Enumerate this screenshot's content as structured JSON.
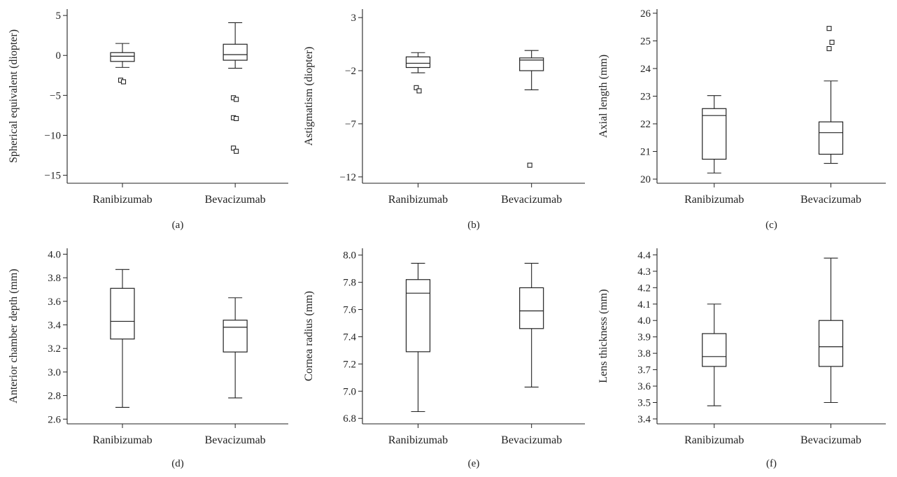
{
  "figure": {
    "panels": [
      "(a)",
      "(b)",
      "(c)",
      "(d)",
      "(e)",
      "(f)"
    ]
  },
  "chart_data": [
    {
      "type": "box",
      "panel_label": "(a)",
      "ylabel": "Spherical equivalent (diopter)",
      "categories": [
        "Ranibizumab",
        "Bevacizumab"
      ],
      "ylim": [
        -16,
        5.8
      ],
      "yticks": [
        5,
        0,
        -5,
        -10,
        -15
      ],
      "ytick_labels": [
        "5",
        "0",
        "−5",
        "−10",
        "−15"
      ],
      "grid": false,
      "boxes": [
        {
          "whisker_low": -1.5,
          "q1": -0.75,
          "median": -0.1,
          "q3": 0.35,
          "whisker_high": 1.5,
          "outliers": [
            -3.1,
            -3.3
          ]
        },
        {
          "whisker_low": -1.6,
          "q1": -0.6,
          "median": 0.1,
          "q3": 1.4,
          "whisker_high": 4.1,
          "outliers": [
            -5.3,
            -5.5,
            -7.8,
            -7.9,
            -11.6,
            -12.0
          ]
        }
      ]
    },
    {
      "type": "box",
      "panel_label": "(b)",
      "ylabel": "Astigmatism (diopter)",
      "categories": [
        "Ranibizumab",
        "Bevacizumab"
      ],
      "ylim": [
        -12.6,
        3.8
      ],
      "yticks": [
        3,
        -2,
        -7,
        -12
      ],
      "ytick_labels": [
        "3",
        "−2",
        "−7",
        "−12"
      ],
      "grid": false,
      "boxes": [
        {
          "whisker_low": -2.2,
          "q1": -1.7,
          "median": -1.3,
          "q3": -0.7,
          "whisker_high": -0.3,
          "outliers": [
            -3.6,
            -3.9
          ]
        },
        {
          "whisker_low": -3.8,
          "q1": -2.0,
          "median": -1.0,
          "q3": -0.8,
          "whisker_high": -0.1,
          "outliers": [
            -10.9
          ]
        }
      ]
    },
    {
      "type": "box",
      "panel_label": "(c)",
      "ylabel": "Axial length (mm)",
      "categories": [
        "Ranibizumab",
        "Bevacizumab"
      ],
      "ylim": [
        19.85,
        26.15
      ],
      "yticks": [
        20,
        21,
        22,
        23,
        24,
        25,
        26
      ],
      "ytick_labels": [
        "20",
        "21",
        "22",
        "23",
        "24",
        "25",
        "26"
      ],
      "grid": false,
      "boxes": [
        {
          "whisker_low": 20.22,
          "q1": 20.72,
          "median": 22.3,
          "q3": 22.55,
          "whisker_high": 23.02,
          "outliers": []
        },
        {
          "whisker_low": 20.57,
          "q1": 20.9,
          "median": 21.68,
          "q3": 22.07,
          "whisker_high": 23.55,
          "outliers": [
            24.72,
            24.95,
            25.45
          ]
        }
      ]
    },
    {
      "type": "box",
      "panel_label": "(d)",
      "ylabel": "Anterior chamber depth (mm)",
      "categories": [
        "Ranibizumab",
        "Bevacizumab"
      ],
      "ylim": [
        2.56,
        4.05
      ],
      "yticks": [
        4.0,
        3.8,
        3.6,
        3.4,
        3.2,
        3.0,
        2.8,
        2.6
      ],
      "ytick_labels": [
        "4.0",
        "3.8",
        "3.6",
        "3.4",
        "3.2",
        "3.0",
        "2.8",
        "2.6"
      ],
      "grid": false,
      "boxes": [
        {
          "whisker_low": 2.7,
          "q1": 3.28,
          "median": 3.43,
          "q3": 3.71,
          "whisker_high": 3.87,
          "outliers": []
        },
        {
          "whisker_low": 2.78,
          "q1": 3.17,
          "median": 3.38,
          "q3": 3.44,
          "whisker_high": 3.63,
          "outliers": []
        }
      ]
    },
    {
      "type": "box",
      "panel_label": "(e)",
      "ylabel": "Cornea radius (mm)",
      "categories": [
        "Ranibizumab",
        "Bevacizumab"
      ],
      "ylim": [
        6.76,
        8.05
      ],
      "yticks": [
        8.0,
        7.8,
        7.6,
        7.4,
        7.2,
        7.0,
        6.8
      ],
      "ytick_labels": [
        "8.0",
        "7.8",
        "7.6",
        "7.4",
        "7.2",
        "7.0",
        "6.8"
      ],
      "grid": false,
      "boxes": [
        {
          "whisker_low": 6.85,
          "q1": 7.29,
          "median": 7.72,
          "q3": 7.82,
          "whisker_high": 7.94,
          "outliers": []
        },
        {
          "whisker_low": 7.03,
          "q1": 7.46,
          "median": 7.59,
          "q3": 7.76,
          "whisker_high": 7.94,
          "outliers": []
        }
      ]
    },
    {
      "type": "box",
      "panel_label": "(f)",
      "ylabel": "Lens thickness (mm)",
      "categories": [
        "Ranibizumab",
        "Bevacizumab"
      ],
      "ylim": [
        3.37,
        4.44
      ],
      "yticks": [
        4.4,
        4.3,
        4.2,
        4.1,
        4.0,
        3.9,
        3.8,
        3.7,
        3.6,
        3.5,
        3.4
      ],
      "ytick_labels": [
        "4.4",
        "4.3",
        "4.2",
        "4.1",
        "4.0",
        "3.9",
        "3.8",
        "3.7",
        "3.6",
        "3.5",
        "3.4"
      ],
      "grid": false,
      "boxes": [
        {
          "whisker_low": 3.48,
          "q1": 3.72,
          "median": 3.78,
          "q3": 3.92,
          "whisker_high": 4.1,
          "outliers": []
        },
        {
          "whisker_low": 3.5,
          "q1": 3.72,
          "median": 3.84,
          "q3": 4.0,
          "whisker_high": 4.38,
          "outliers": []
        }
      ]
    }
  ]
}
